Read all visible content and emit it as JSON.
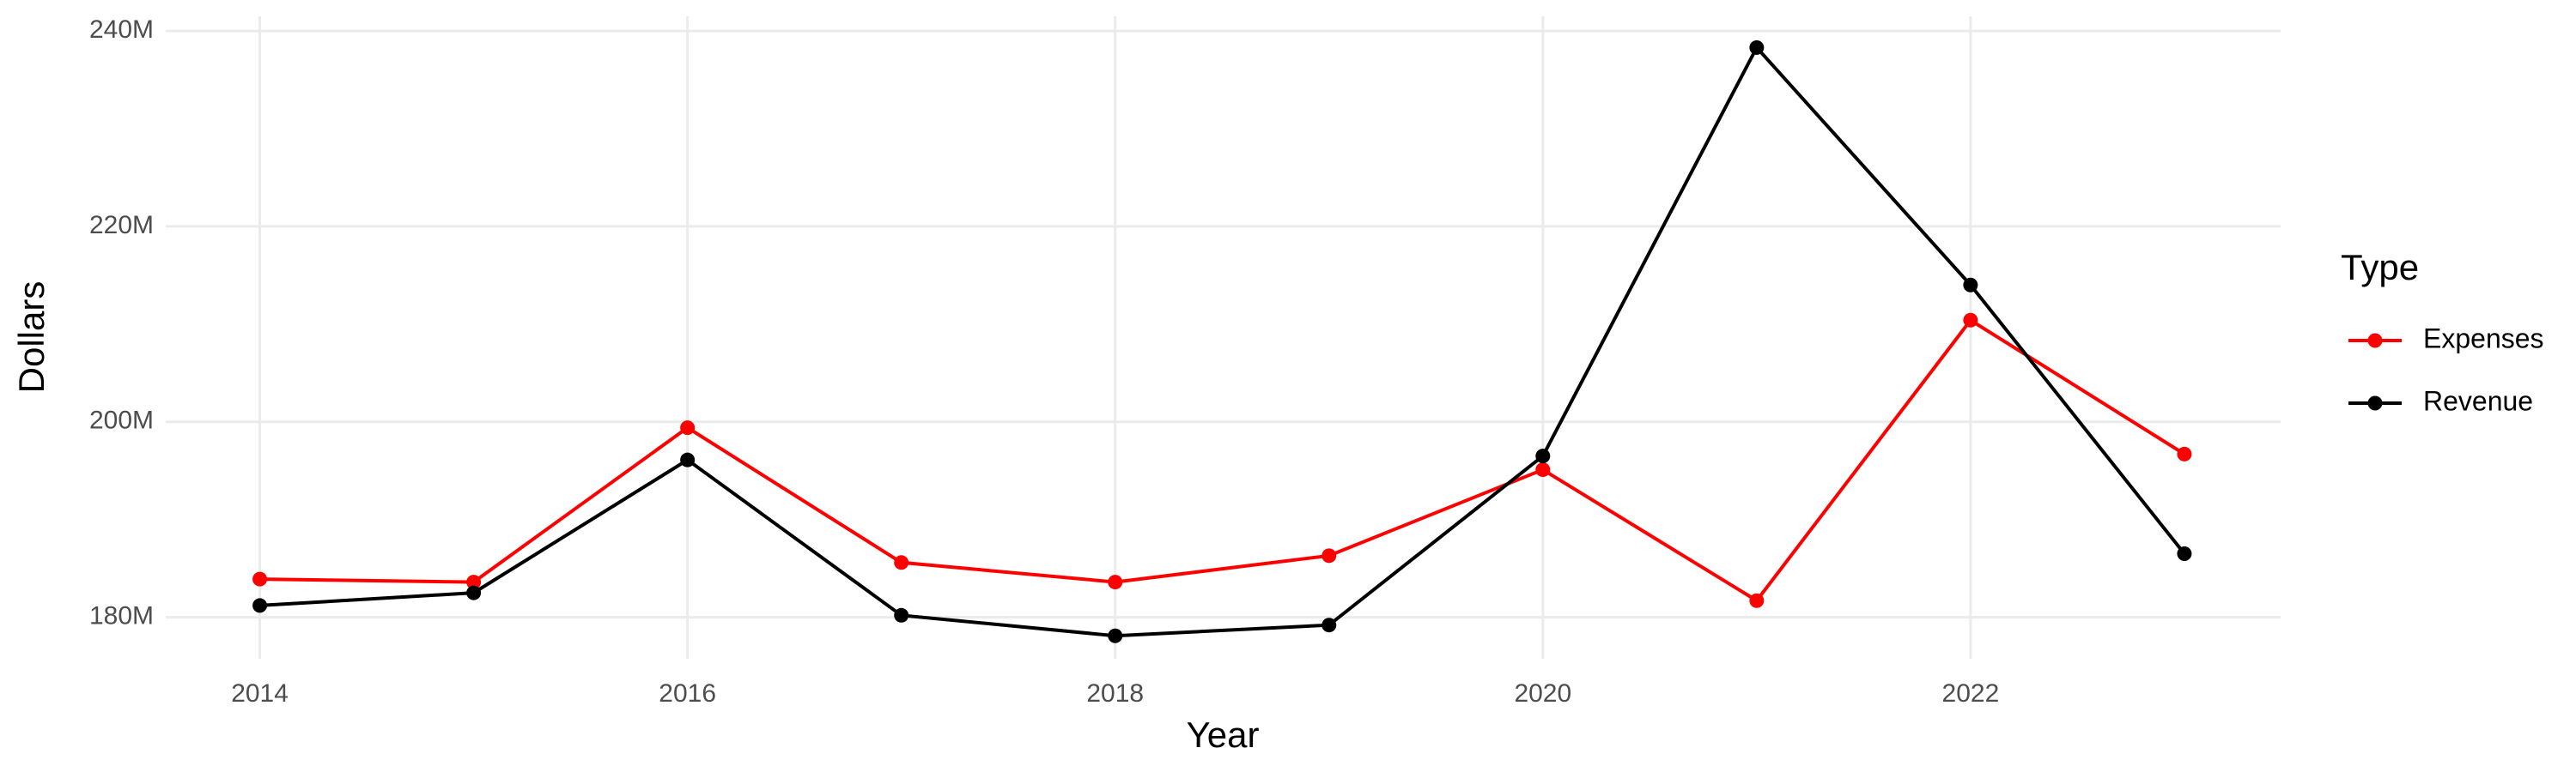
{
  "chart_data": {
    "type": "line",
    "x_label": "Year",
    "y_label": "Dollars",
    "legend_title": "Type",
    "x": [
      2014,
      2015,
      2016,
      2017,
      2018,
      2019,
      2020,
      2021,
      2022,
      2023
    ],
    "series": [
      {
        "name": "Expenses",
        "color": "#ff0000",
        "values": [
          183900000,
          183600000,
          199400000,
          185600000,
          183600000,
          186300000,
          195100000,
          181700000,
          210400000,
          196700000
        ]
      },
      {
        "name": "Revenue",
        "color": "#000000",
        "values": [
          181200000,
          182500000,
          196100000,
          180200000,
          178100000,
          179200000,
          196500000,
          238300000,
          214000000,
          186500000
        ]
      }
    ],
    "xlim": [
      2013.56,
      2023.45
    ],
    "xticks": [
      2014,
      2016,
      2018,
      2020,
      2022
    ],
    "ylim": [
      175750000,
      241500000
    ],
    "yticks": [
      {
        "value": 180000000,
        "label": "180M"
      },
      {
        "value": 200000000,
        "label": "200M"
      },
      {
        "value": 220000000,
        "label": "220M"
      },
      {
        "value": 240000000,
        "label": "240M"
      }
    ],
    "grid": true,
    "legend": "right"
  }
}
